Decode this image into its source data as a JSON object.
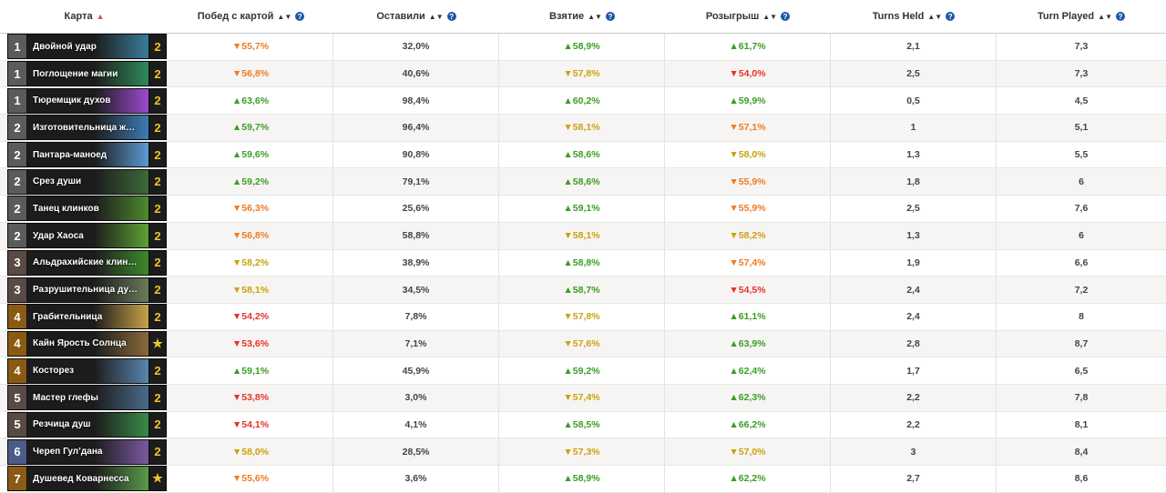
{
  "headers": {
    "card": "Карта",
    "winrate": "Побед с картой",
    "kept": "Оставили",
    "drawn": "Взятие",
    "played": "Розыгрыш",
    "turns_held": "Turns Held",
    "turn_played": "Turn Played"
  },
  "colors": {
    "up": "#3a9d23",
    "down_orange": "#ee7b22",
    "down_yellow": "#c9a20d",
    "down_red": "#e5332a",
    "info": "#1e57a8"
  },
  "rows": [
    {
      "mana": "1",
      "name": "Двойной удар",
      "count": "2",
      "art": "#3a7d9a",
      "win": "▼55,7%",
      "winc": "down-orange",
      "kept": "32,0%",
      "drawn": "▲58,9%",
      "drawnc": "up",
      "played": "▲61,7%",
      "playedc": "up",
      "held": "2,1",
      "turn": "7,3"
    },
    {
      "mana": "1",
      "name": "Поглощение магии",
      "count": "2",
      "art": "#2f8a5a",
      "win": "▼56,8%",
      "winc": "down-orange",
      "kept": "40,6%",
      "drawn": "▼57,8%",
      "drawnc": "down-yellow",
      "played": "▼54,0%",
      "playedc": "down-red",
      "held": "2,5",
      "turn": "7,3"
    },
    {
      "mana": "1",
      "name": "Тюремщик духов",
      "count": "2",
      "art": "#9b4bd0",
      "win": "▲63,6%",
      "winc": "up",
      "kept": "98,4%",
      "drawn": "▲60,2%",
      "drawnc": "up",
      "played": "▲59,9%",
      "playedc": "up",
      "held": "0,5",
      "turn": "4,5"
    },
    {
      "mana": "2",
      "name": "Изготовительница ж…",
      "count": "2",
      "art": "#3d7bb4",
      "win": "▲59,7%",
      "winc": "up",
      "kept": "96,4%",
      "drawn": "▼58,1%",
      "drawnc": "down-yellow",
      "played": "▼57,1%",
      "playedc": "down-orange",
      "held": "1",
      "turn": "5,1"
    },
    {
      "mana": "2",
      "name": "Пантара-маноед",
      "count": "2",
      "art": "#5a9bd4",
      "win": "▲59,6%",
      "winc": "up",
      "kept": "90,8%",
      "drawn": "▲58,6%",
      "drawnc": "up",
      "played": "▼58,0%",
      "playedc": "down-yellow",
      "held": "1,3",
      "turn": "5,5"
    },
    {
      "mana": "2",
      "name": "Срез души",
      "count": "2",
      "art": "#3e6a3a",
      "win": "▲59,2%",
      "winc": "up",
      "kept": "79,1%",
      "drawn": "▲58,6%",
      "drawnc": "up",
      "played": "▼55,9%",
      "playedc": "down-orange",
      "held": "1,8",
      "turn": "6"
    },
    {
      "mana": "2",
      "name": "Танец клинков",
      "count": "2",
      "art": "#4e8a2e",
      "win": "▼56,3%",
      "winc": "down-orange",
      "kept": "25,6%",
      "drawn": "▲59,1%",
      "drawnc": "up",
      "played": "▼55,9%",
      "playedc": "down-orange",
      "held": "2,5",
      "turn": "7,6"
    },
    {
      "mana": "2",
      "name": "Удар Хаоса",
      "count": "2",
      "art": "#5ea232",
      "win": "▼56,8%",
      "winc": "down-orange",
      "kept": "58,8%",
      "drawn": "▼58,1%",
      "drawnc": "down-yellow",
      "played": "▼58,2%",
      "playedc": "down-yellow",
      "held": "1,3",
      "turn": "6"
    },
    {
      "mana": "3",
      "name": "Альдрахийские клин…",
      "count": "2",
      "art": "#3d8a2a",
      "win": "▼58,2%",
      "winc": "down-yellow",
      "kept": "38,9%",
      "drawn": "▲58,8%",
      "drawnc": "up",
      "played": "▼57,4%",
      "playedc": "down-orange",
      "held": "1,9",
      "turn": "6,6"
    },
    {
      "mana": "3",
      "name": "Разрушительница ду…",
      "count": "2",
      "art": "#6a7a5a",
      "win": "▼58,1%",
      "winc": "down-yellow",
      "kept": "34,5%",
      "drawn": "▲58,7%",
      "drawnc": "up",
      "played": "▼54,5%",
      "playedc": "down-red",
      "held": "2,4",
      "turn": "7,2"
    },
    {
      "mana": "4",
      "name": "Грабительница",
      "count": "2",
      "art": "#c9a24a",
      "win": "▼54,2%",
      "winc": "down-red",
      "kept": "7,8%",
      "drawn": "▼57,8%",
      "drawnc": "down-yellow",
      "played": "▲61,1%",
      "playedc": "up",
      "held": "2,4",
      "turn": "8"
    },
    {
      "mana": "4",
      "name": "Кайн Ярость Солнца",
      "count": "★",
      "art": "#8a6a3a",
      "win": "▼53,6%",
      "winc": "down-red",
      "kept": "7,1%",
      "drawn": "▼57,6%",
      "drawnc": "down-yellow",
      "played": "▲63,9%",
      "playedc": "up",
      "held": "2,8",
      "turn": "8,7"
    },
    {
      "mana": "4",
      "name": "Косторез",
      "count": "2",
      "art": "#5a86b0",
      "win": "▲59,1%",
      "winc": "up",
      "kept": "45,9%",
      "drawn": "▲59,2%",
      "drawnc": "up",
      "played": "▲62,4%",
      "playedc": "up",
      "held": "1,7",
      "turn": "6,5"
    },
    {
      "mana": "5",
      "name": "Мастер глефы",
      "count": "2",
      "art": "#4a6a8a",
      "win": "▼53,8%",
      "winc": "down-red",
      "kept": "3,0%",
      "drawn": "▼57,4%",
      "drawnc": "down-yellow",
      "played": "▲62,3%",
      "playedc": "up",
      "held": "2,2",
      "turn": "7,8"
    },
    {
      "mana": "5",
      "name": "Резчица душ",
      "count": "2",
      "art": "#3a8a4a",
      "win": "▼54,1%",
      "winc": "down-red",
      "kept": "4,1%",
      "drawn": "▲58,5%",
      "drawnc": "up",
      "played": "▲66,2%",
      "playedc": "up",
      "held": "2,2",
      "turn": "8,1"
    },
    {
      "mana": "6",
      "name": "Череп Гул’дана",
      "count": "2",
      "art": "#7a5aa0",
      "win": "▼58,0%",
      "winc": "down-yellow",
      "kept": "28,5%",
      "drawn": "▼57,3%",
      "drawnc": "down-yellow",
      "played": "▼57,0%",
      "playedc": "down-yellow",
      "held": "3",
      "turn": "8,4"
    },
    {
      "mana": "7",
      "name": "Душевед Коварнесса",
      "count": "★",
      "art": "#5a9a4a",
      "win": "▼55,6%",
      "winc": "down-orange",
      "kept": "3,6%",
      "drawn": "▲58,9%",
      "drawnc": "up",
      "played": "▲62,2%",
      "playedc": "up",
      "held": "2,7",
      "turn": "8,6"
    }
  ]
}
